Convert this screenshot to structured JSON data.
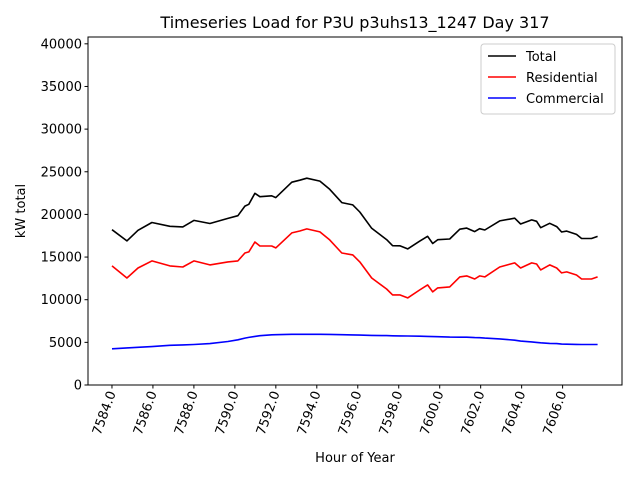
{
  "chart_data": {
    "type": "line",
    "title": "Timeseries Load for P3U p3uhs13_1247  Day 317",
    "xlabel": "Hour of Year",
    "ylabel": "kW total",
    "xlim": [
      7582.83,
      7608.9
    ],
    "ylim": [
      0,
      40800
    ],
    "xticks": [
      7584,
      7586,
      7588,
      7590,
      7592,
      7594,
      7596,
      7598,
      7600,
      7602,
      7604,
      7606
    ],
    "xtick_labels": [
      "7584.0",
      "7586.0",
      "7588.0",
      "7590.0",
      "7592.0",
      "7594.0",
      "7596.0",
      "7598.0",
      "7600.0",
      "7602.0",
      "7604.0",
      "7606.0"
    ],
    "yticks": [
      0,
      5000,
      10000,
      15000,
      20000,
      25000,
      30000,
      35000,
      40000
    ],
    "ytick_labels": [
      "0",
      "5000",
      "10000",
      "15000",
      "20000",
      "25000",
      "30000",
      "35000",
      "40000"
    ],
    "grid": false,
    "legend_position": "top-right",
    "x": [
      7584.0,
      7584.73,
      7585.27,
      7585.95,
      7586.83,
      7587.46,
      7588.0,
      7588.78,
      7589.66,
      7590.15,
      7590.49,
      7590.68,
      7590.98,
      7591.22,
      7591.8,
      7592.0,
      7592.78,
      7593.17,
      7593.51,
      7594.15,
      7594.63,
      7595.22,
      7595.76,
      7596.1,
      7596.68,
      7597.41,
      7597.7,
      7598.05,
      7598.44,
      7599.02,
      7599.41,
      7599.66,
      7599.9,
      7600.49,
      7600.98,
      7601.32,
      7601.71,
      7601.95,
      7602.2,
      7602.93,
      7603.66,
      7603.95,
      7604.49,
      7604.73,
      7604.93,
      7605.37,
      7605.71,
      7605.95,
      7606.2,
      7606.68,
      7606.93,
      7607.41,
      7607.71
    ],
    "series": [
      {
        "name": "Total",
        "color": "#000000",
        "values": [
          18210,
          16900,
          18140,
          19050,
          18610,
          18540,
          19300,
          18930,
          19530,
          19850,
          20980,
          21180,
          22470,
          22080,
          22180,
          21970,
          23780,
          24010,
          24250,
          23900,
          22940,
          21380,
          21120,
          20280,
          18370,
          17050,
          16330,
          16320,
          15960,
          16860,
          17430,
          16590,
          17040,
          17120,
          18270,
          18390,
          17990,
          18330,
          18170,
          19240,
          19560,
          18870,
          19360,
          19190,
          18440,
          18960,
          18570,
          17940,
          18040,
          17660,
          17180,
          17180,
          17420
        ]
      },
      {
        "name": "Residential",
        "color": "#ff0000",
        "values": [
          13960,
          12550,
          13720,
          14550,
          13960,
          13840,
          14550,
          14080,
          14430,
          14550,
          15480,
          15600,
          16770,
          16300,
          16300,
          16070,
          17830,
          18060,
          18300,
          17950,
          17010,
          15480,
          15250,
          14430,
          12550,
          11260,
          10560,
          10560,
          10210,
          11140,
          11730,
          10910,
          11380,
          11500,
          12670,
          12790,
          12430,
          12790,
          12670,
          13840,
          14310,
          13720,
          14310,
          14190,
          13490,
          14080,
          13720,
          13140,
          13260,
          12900,
          12430,
          12430,
          12670
        ]
      },
      {
        "name": "Commercial",
        "color": "#0000ff",
        "values": [
          4250,
          4350,
          4420,
          4500,
          4650,
          4700,
          4750,
          4850,
          5100,
          5300,
          5500,
          5580,
          5700,
          5780,
          5880,
          5900,
          5950,
          5950,
          5950,
          5950,
          5930,
          5900,
          5870,
          5850,
          5820,
          5790,
          5770,
          5760,
          5750,
          5720,
          5700,
          5680,
          5660,
          5620,
          5600,
          5600,
          5560,
          5540,
          5500,
          5400,
          5250,
          5150,
          5050,
          5000,
          4950,
          4880,
          4850,
          4800,
          4780,
          4760,
          4750,
          4750,
          4750
        ]
      }
    ]
  }
}
